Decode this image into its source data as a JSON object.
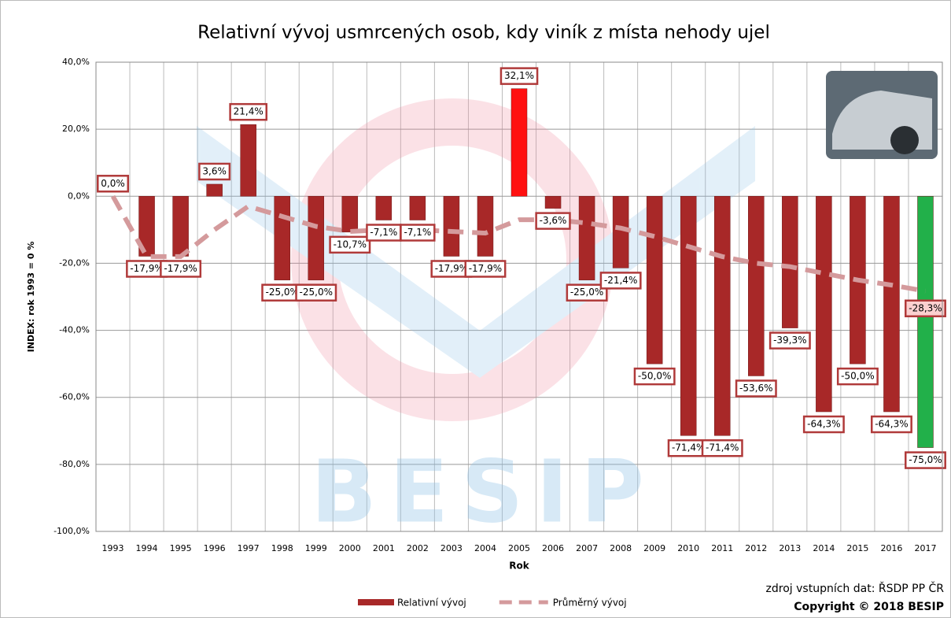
{
  "chart_data": {
    "type": "bar",
    "title": "Relativní vývoj usmrcených osob, kdy viník z místa nehody ujel",
    "x_label": "Rok",
    "y_label": "INDEX: rok 1993 = 0 %",
    "watermark": "BESIP",
    "source": "zdroj vstupních dat: ŘSDP PP ČR",
    "copyright": "Copyright © 2018 BESIP",
    "categories": [
      "1993",
      "1994",
      "1995",
      "1996",
      "1997",
      "1998",
      "1999",
      "2000",
      "2001",
      "2002",
      "2003",
      "2004",
      "2005",
      "2006",
      "2007",
      "2008",
      "2009",
      "2010",
      "2011",
      "2012",
      "2013",
      "2014",
      "2015",
      "2016",
      "2017"
    ],
    "series": [
      {
        "name": "Relativní vývoj",
        "type": "bar",
        "color": "#a82828",
        "colors": [
          "#a82828",
          "#a82828",
          "#a82828",
          "#a82828",
          "#a82828",
          "#a82828",
          "#a82828",
          "#a82828",
          "#a82828",
          "#a82828",
          "#a82828",
          "#a82828",
          "#ff1010",
          "#a82828",
          "#a82828",
          "#a82828",
          "#a82828",
          "#a82828",
          "#a82828",
          "#a82828",
          "#a82828",
          "#a82828",
          "#a82828",
          "#a82828",
          "#22b04a"
        ],
        "values": [
          0.0,
          -17.9,
          -17.9,
          3.6,
          21.4,
          -25.0,
          -25.0,
          -10.7,
          -7.1,
          -7.1,
          -17.9,
          -17.9,
          32.1,
          -3.6,
          -25.0,
          -21.4,
          -50.0,
          -71.4,
          -71.4,
          -53.6,
          -39.3,
          -64.3,
          -50.0,
          -64.3,
          -75.0
        ],
        "value_labels": [
          "0,0%",
          "-17,9%",
          "-17,9%",
          "3,6%",
          "21,4%",
          "-25,0%",
          "-25,0%",
          "-10,7%",
          "-7,1%",
          "-7,1%",
          "-17,9%",
          "-17,9%",
          "32,1%",
          "-3,6%",
          "-25,0%",
          "-21,4%",
          "-50,0%",
          "-71,4%",
          "-71,4%",
          "-53,6%",
          "-39,3%",
          "-64,3%",
          "-50,0%",
          "-64,3%",
          "-75,0%"
        ]
      },
      {
        "name": "Průměrný vývoj",
        "type": "line",
        "color": "#d49a9c",
        "values": [
          0,
          -18,
          -18,
          -10,
          -3,
          -6,
          -9,
          -10.5,
          -10,
          -10,
          -10.5,
          -11,
          -7,
          -7,
          -8,
          -9.5,
          -12,
          -15,
          -18,
          -20,
          -21,
          -23,
          -25,
          -26.5,
          -28.3
        ],
        "value_labels": [
          null,
          null,
          null,
          null,
          null,
          null,
          null,
          null,
          null,
          null,
          null,
          null,
          null,
          null,
          null,
          null,
          null,
          null,
          null,
          null,
          null,
          null,
          null,
          null,
          "-28,3%"
        ]
      }
    ],
    "ylim": [
      -100,
      40
    ],
    "yticks": [
      {
        "value": -100,
        "label": "-100,0%"
      },
      {
        "value": -80,
        "label": "-80,0%"
      },
      {
        "value": -60,
        "label": "-60,0%"
      },
      {
        "value": -40,
        "label": "-40,0%"
      },
      {
        "value": -20,
        "label": "-20,0%"
      },
      {
        "value": 0,
        "label": "0,0%"
      },
      {
        "value": 20,
        "label": "20,0%"
      },
      {
        "value": 40,
        "label": "40,0%"
      }
    ],
    "grid": true,
    "legend": "bottom"
  }
}
